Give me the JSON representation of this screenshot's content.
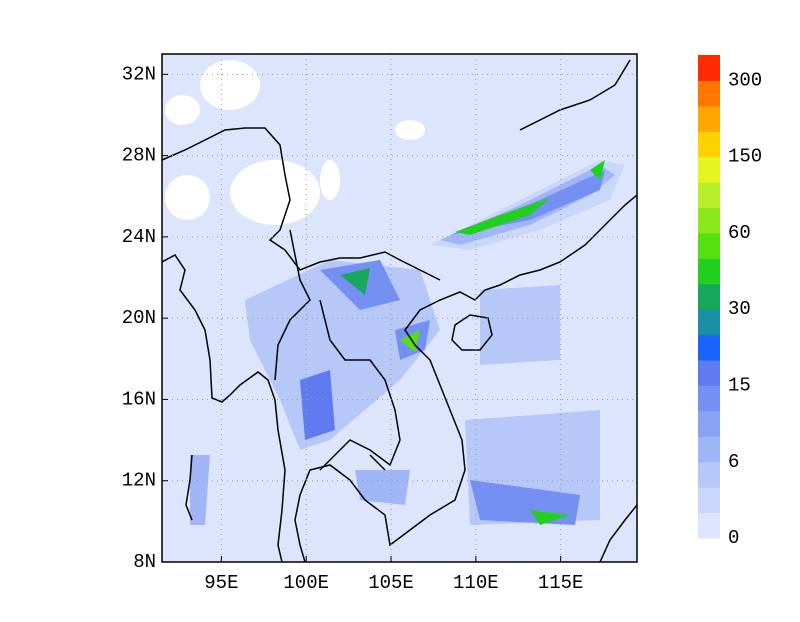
{
  "chart_data": {
    "type": "contour",
    "xlim": [
      91.5,
      119.5
    ],
    "ylim": [
      8,
      33
    ],
    "xticks": [
      {
        "value": 95,
        "label": "95E"
      },
      {
        "value": 100,
        "label": "100E"
      },
      {
        "value": 105,
        "label": "105E"
      },
      {
        "value": 110,
        "label": "110E"
      },
      {
        "value": 115,
        "label": "115E"
      }
    ],
    "yticks": [
      {
        "value": 8,
        "label": "8N"
      },
      {
        "value": 12,
        "label": "12N"
      },
      {
        "value": 16,
        "label": "16N"
      },
      {
        "value": 20,
        "label": "20N"
      },
      {
        "value": 24,
        "label": "24N"
      },
      {
        "value": 28,
        "label": "28N"
      },
      {
        "value": 32,
        "label": "32N"
      }
    ],
    "grid": true,
    "colorbar": {
      "labels": [
        0,
        6,
        15,
        30,
        60,
        150,
        300
      ],
      "colors": [
        "#dce5fb",
        "#c9d7fa",
        "#b6c8f8",
        "#a1b6f6",
        "#8aa2f4",
        "#7490f2",
        "#5f7bef",
        "#1a64f9",
        "#1a8fa6",
        "#17a85c",
        "#22cf1f",
        "#55e010",
        "#8be81a",
        "#b8ef2a",
        "#e6f420",
        "#ffd100",
        "#ffa600",
        "#ff7600",
        "#ff2a00"
      ]
    }
  }
}
